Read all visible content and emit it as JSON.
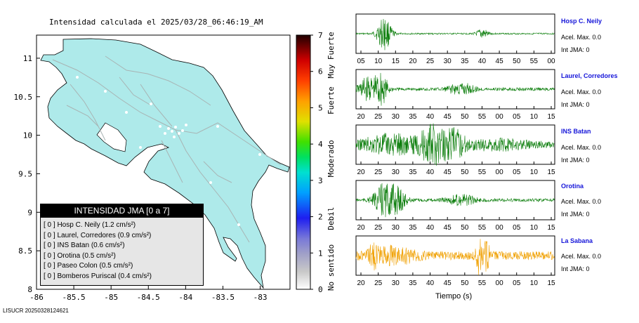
{
  "title": "Intensidad calculada el 2025/03/28_06:46:19_AM",
  "footer": "LISUCR 20250328124621",
  "colors": {
    "land": "#aeeaea",
    "road": "#a8b4b4",
    "wave_green": "#0a7d0a",
    "wave_orange": "#f0a000",
    "station_label": "#1515d9"
  },
  "legend": {
    "header": "INTENSIDAD JMA [0 a 7]",
    "items": [
      "[ 0 ]  Hosp C. Neily (1.2 cm/s²)",
      "[ 0 ]  Laurel, Corredores (0.9 cm/s²)",
      "[ 0 ]  INS Batan (0.6 cm/s²)",
      "[ 0 ]  Orotina (0.5 cm/s²)",
      "[ 0 ]  Paseo Colon (0.5 cm/s²)",
      "[ 0 ]  Bomberos Puriscal (0.4 cm/s²)"
    ]
  },
  "map": {
    "x_ticks": [
      "-86",
      "-85.5",
      "-85",
      "-84.5",
      "-84",
      "-83.5",
      "-83"
    ],
    "y_ticks": [
      "11",
      "10.5",
      "10",
      "9.5",
      "9",
      "8.5",
      "8"
    ]
  },
  "colorbar": {
    "ticks": [
      "7",
      "6",
      "5",
      "4",
      "3",
      "2",
      "1",
      "0"
    ],
    "zones": [
      "Muy Fuerte",
      "Fuerte",
      "Moderado",
      "Debil",
      "No sentido"
    ]
  },
  "chart_data": [
    {
      "type": "scalar-map",
      "title": "Intensidad calculada el 2025/03/28_06:46:19_AM",
      "xlim": [
        -86,
        -82.6
      ],
      "ylim": [
        8,
        11.3
      ],
      "x_ticks": [
        -86,
        -85.5,
        -85,
        -84.5,
        -84,
        -83.5,
        -83
      ],
      "y_ticks": [
        8,
        8.5,
        9,
        9.5,
        10,
        10.5,
        11
      ],
      "colorbar": {
        "range": [
          0,
          7
        ],
        "labels": [
          "No sentido",
          "Debil",
          "Moderado",
          "Fuerte",
          "Muy Fuerte"
        ]
      },
      "stations": [
        {
          "name": "Hosp C. Neily",
          "intensity": 0,
          "pga": 1.2
        },
        {
          "name": "Laurel, Corredores",
          "intensity": 0,
          "pga": 0.9
        },
        {
          "name": "INS Batan",
          "intensity": 0,
          "pga": 0.6
        },
        {
          "name": "Orotina",
          "intensity": 0,
          "pga": 0.5
        },
        {
          "name": "Paseo Colon",
          "intensity": 0,
          "pga": 0.5
        },
        {
          "name": "Bomberos Puriscal",
          "intensity": 0,
          "pga": 0.4
        }
      ]
    },
    {
      "type": "line",
      "xlabel": "Tiempo (s)",
      "series": [
        {
          "name": "Hosp C. Neily",
          "acel_max": "Acel. Max. 0.0",
          "int_jma": "Int JMA: 0",
          "ticks": [
            "05",
            "10",
            "15",
            "20",
            "25",
            "30",
            "35",
            "40",
            "45",
            "50",
            "55",
            "00"
          ],
          "color": "green"
        },
        {
          "name": "Laurel, Corredores",
          "acel_max": "Acel. Max. 0.0",
          "int_jma": "Int JMA: 0",
          "ticks": [
            "20",
            "25",
            "30",
            "35",
            "40",
            "45",
            "50",
            "55",
            "00",
            "05",
            "10",
            "15"
          ],
          "color": "green"
        },
        {
          "name": "INS Batan",
          "acel_max": "Acel. Max. 0.0",
          "int_jma": "Int JMA: 0",
          "ticks": [
            "20",
            "25",
            "30",
            "35",
            "40",
            "45",
            "50",
            "55",
            "00",
            "05",
            "10",
            "15"
          ],
          "color": "green"
        },
        {
          "name": "Orotina",
          "acel_max": "Acel. Max. 0.0",
          "int_jma": "Int JMA: 0",
          "ticks": [
            "20",
            "25",
            "30",
            "35",
            "40",
            "45",
            "50",
            "55",
            "00",
            "05",
            "10",
            "15"
          ],
          "color": "green"
        },
        {
          "name": "La Sabana",
          "acel_max": "Acel. Max. 0.0",
          "int_jma": "Int JMA: 0",
          "ticks": [
            "20",
            "25",
            "30",
            "35",
            "40",
            "45",
            "50",
            "55",
            "00",
            "05",
            "10",
            "15"
          ],
          "color": "orange"
        }
      ]
    }
  ]
}
